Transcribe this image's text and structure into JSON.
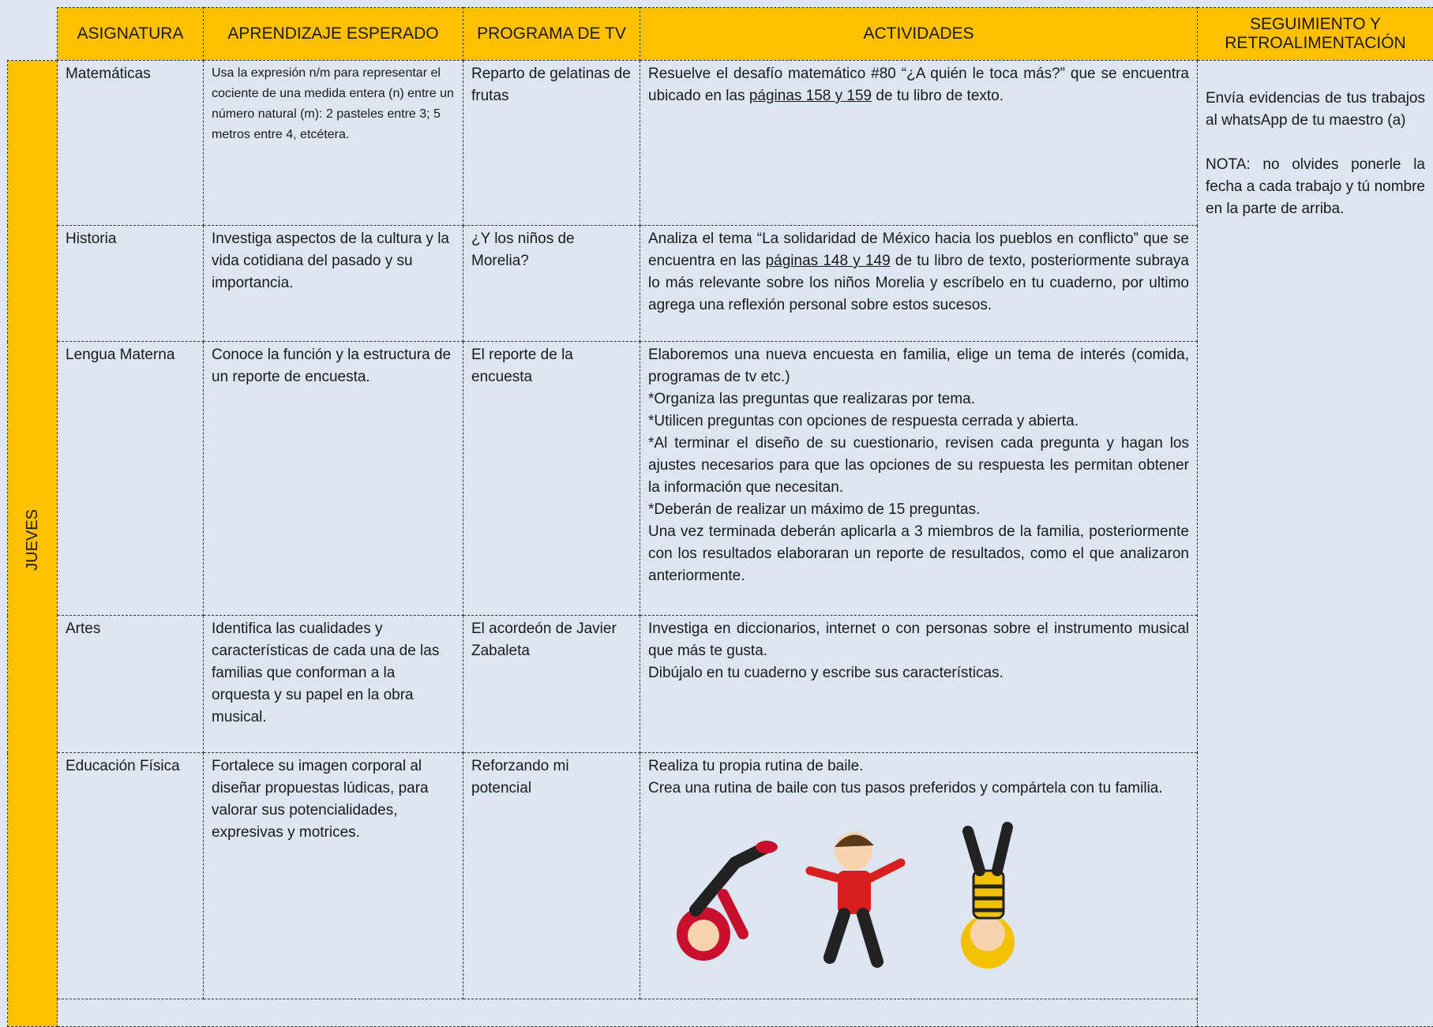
{
  "header": {
    "columns": [
      "ASIGNATURA",
      "APRENDIZAJE ESPERADO",
      "PROGRAMA DE TV",
      "ACTIVIDADES",
      "SEGUIMIENTO Y RETROALIMENTACIÓN"
    ]
  },
  "day": "JUEVES",
  "rows": [
    {
      "subject": "Matemáticas",
      "learning": "Usa la expresión n/m para representar el cociente de una medida entera (n) entre un número natural (m): 2 pasteles entre 3; 5 metros entre 4, etcétera.",
      "program": "Reparto de gelatinas de frutas",
      "activities": [
        [
          {
            "text": "Resuelve el desafío matemático #80 “¿A quién le toca más?” que se encuentra ubicado en las "
          },
          {
            "text": "páginas 158 y 159",
            "underline": true
          },
          {
            "text": " de tu libro de texto."
          }
        ]
      ]
    },
    {
      "subject": "Historia",
      "learning": "Investiga aspectos de la cultura y la vida cotidiana del pasado y su importancia.",
      "program": "¿Y los niños de Morelia?",
      "activities": [
        [
          {
            "text": "Analiza el tema “La solidaridad de México hacia los pueblos en conflicto” que se encuentra en las "
          },
          {
            "text": "páginas 148 y 149",
            "underline": true
          },
          {
            "text": " de tu libro de texto, posteriormente subraya lo más relevante sobre los niños Morelia y escríbelo en tu cuaderno, por ultimo agrega una reflexión personal sobre estos sucesos."
          }
        ]
      ]
    },
    {
      "subject": "Lengua Materna",
      "learning": "Conoce la función y la estructura de un reporte de encuesta.",
      "program": "El reporte de la encuesta",
      "activities": [
        [
          {
            "text": "Elaboremos una nueva encuesta en familia, elige un tema de interés (comida, programas de tv etc.)"
          }
        ],
        [
          {
            "text": "*Organiza las preguntas que realizaras por tema."
          }
        ],
        [
          {
            "text": "*Utilicen preguntas con opciones de respuesta cerrada y abierta."
          }
        ],
        [
          {
            "text": "*Al terminar el diseño de su cuestionario, revisen cada pregunta y hagan los ajustes necesarios para que las opciones de su respuesta les permitan obtener la información que necesitan."
          }
        ],
        [
          {
            "text": "*Deberán de realizar un máximo de 15 preguntas."
          }
        ],
        [
          {
            "text": "Una vez terminada deberán aplicarla a 3 miembros de la familia, posteriormente con los resultados elaboraran un reporte de resultados, como el que analizaron anteriormente."
          }
        ]
      ]
    },
    {
      "subject": "Artes",
      "learning": "Identifica las cualidades y características de cada una de las familias que conforman a la orquesta y su papel en la obra musical.",
      "program": "El acordeón de Javier Zabaleta",
      "activities": [
        [
          {
            "text": "Investiga en diccionarios, internet o con personas sobre el instrumento musical que más te gusta."
          }
        ],
        [
          {
            "text": "Dibújalo en tu cuaderno y escribe sus características."
          }
        ]
      ]
    },
    {
      "subject": "Educación Física",
      "learning": "Fortalece su imagen corporal al diseñar propuestas lúdicas, para valorar sus potencialidades, expresivas y motrices.",
      "program": "Reforzando mi potencial",
      "activities": [
        [
          {
            "text": "Realiza tu propia rutina de baile."
          }
        ],
        [
          {
            "text": "Crea una rutina de baile con tus pasos preferidos y compártela con tu familia."
          }
        ]
      ]
    }
  ],
  "followup": [
    "Envía evidencias de tus trabajos al whatsApp de tu maestro (a)",
    "NOTA: no olvides ponerle la fecha a cada trabajo y tú nombre en la parte de arriba."
  ]
}
